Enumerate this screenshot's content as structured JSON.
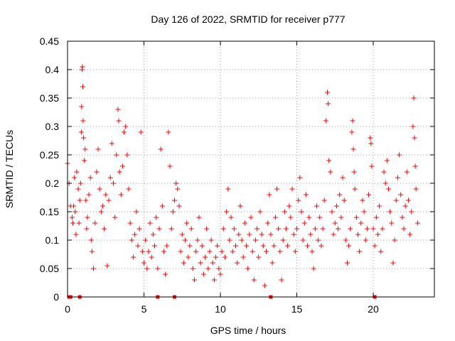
{
  "chart_data": {
    "type": "scatter",
    "title": "Day 126 of 2022, SRMTID for receiver p777",
    "xlabel": "GPS time / hours",
    "ylabel": "SRMTID / TECUs",
    "xlim": [
      0,
      24
    ],
    "ylim": [
      0,
      0.45
    ],
    "xticks": [
      0,
      5,
      10,
      15,
      20
    ],
    "xtick_labels": [
      "0",
      "5",
      "10",
      "15",
      "20"
    ],
    "yticks": [
      0,
      0.05,
      0.1,
      0.15,
      0.2,
      0.25,
      0.3,
      0.35,
      0.4,
      0.45
    ],
    "ytick_labels": [
      "0",
      "0.05",
      "0.1",
      "0.15",
      "0.2",
      "0.25",
      "0.3",
      "0.35",
      "0.4",
      "0.45"
    ],
    "grid": true,
    "marker": "+",
    "color": "#ff0000",
    "series": [
      {
        "name": "SRMTID",
        "points": [
          [
            0.0,
            0.235
          ],
          [
            0.1,
            0.2
          ],
          [
            0.2,
            0.16
          ],
          [
            0.3,
            0.14
          ],
          [
            0.35,
            0.13
          ],
          [
            0.4,
            0.16
          ],
          [
            0.45,
            0.21
          ],
          [
            0.5,
            0.15
          ],
          [
            0.55,
            0.11
          ],
          [
            0.6,
            0.22
          ],
          [
            0.7,
            0.19
          ],
          [
            0.75,
            0.13
          ],
          [
            0.8,
            0.17
          ],
          [
            0.85,
            0.2
          ],
          [
            0.9,
            0.29
          ],
          [
            0.92,
            0.335
          ],
          [
            0.95,
            0.4
          ],
          [
            0.97,
            0.405
          ],
          [
            1.0,
            0.37
          ],
          [
            1.02,
            0.31
          ],
          [
            1.05,
            0.28
          ],
          [
            1.1,
            0.24
          ],
          [
            1.15,
            0.26
          ],
          [
            1.2,
            0.17
          ],
          [
            1.25,
            0.12
          ],
          [
            1.3,
            0.14
          ],
          [
            1.4,
            0.18
          ],
          [
            1.5,
            0.21
          ],
          [
            1.55,
            0.1
          ],
          [
            1.6,
            0.08
          ],
          [
            1.7,
            0.05
          ],
          [
            1.8,
            0.13
          ],
          [
            1.9,
            0.22
          ],
          [
            2.0,
            0.26
          ],
          [
            2.1,
            0.19
          ],
          [
            2.2,
            0.15
          ],
          [
            2.3,
            0.16
          ],
          [
            2.4,
            0.12
          ],
          [
            2.5,
            0.18
          ],
          [
            2.6,
            0.055
          ],
          [
            2.7,
            0.17
          ],
          [
            2.8,
            0.21
          ],
          [
            2.9,
            0.27
          ],
          [
            3.0,
            0.2
          ],
          [
            3.1,
            0.14
          ],
          [
            3.2,
            0.25
          ],
          [
            3.3,
            0.33
          ],
          [
            3.35,
            0.31
          ],
          [
            3.4,
            0.22
          ],
          [
            3.5,
            0.18
          ],
          [
            3.6,
            0.23
          ],
          [
            3.7,
            0.29
          ],
          [
            3.8,
            0.3
          ],
          [
            3.9,
            0.25
          ],
          [
            4.0,
            0.19
          ],
          [
            4.1,
            0.13
          ],
          [
            4.2,
            0.1
          ],
          [
            4.3,
            0.07
          ],
          [
            4.4,
            0.11
          ],
          [
            4.5,
            0.15
          ],
          [
            4.6,
            0.09
          ],
          [
            4.7,
            0.12
          ],
          [
            4.8,
            0.29
          ],
          [
            4.9,
            0.08
          ],
          [
            5.0,
            0.06
          ],
          [
            5.1,
            0.1
          ],
          [
            5.2,
            0.05
          ],
          [
            5.3,
            0.08
          ],
          [
            5.4,
            0.13
          ],
          [
            5.5,
            0.07
          ],
          [
            5.6,
            0.11
          ],
          [
            5.7,
            0.09
          ],
          [
            5.8,
            0.14
          ],
          [
            5.9,
            0.05
          ],
          [
            6.0,
            0.12
          ],
          [
            6.1,
            0.26
          ],
          [
            6.2,
            0.16
          ],
          [
            6.3,
            0.08
          ],
          [
            6.4,
            0.04
          ],
          [
            6.5,
            0.09
          ],
          [
            6.6,
            0.29
          ],
          [
            6.7,
            0.23
          ],
          [
            6.8,
            0.12
          ],
          [
            6.9,
            0.15
          ],
          [
            7.0,
            0.17
          ],
          [
            7.1,
            0.2
          ],
          [
            7.2,
            0.19
          ],
          [
            7.3,
            0.16
          ],
          [
            7.4,
            0.08
          ],
          [
            7.5,
            0.11
          ],
          [
            7.6,
            0.06
          ],
          [
            7.7,
            0.1
          ],
          [
            7.8,
            0.13
          ],
          [
            7.9,
            0.07
          ],
          [
            8.0,
            0.09
          ],
          [
            8.1,
            0.12
          ],
          [
            8.2,
            0.05
          ],
          [
            8.3,
            0.03
          ],
          [
            8.4,
            0.08
          ],
          [
            8.5,
            0.1
          ],
          [
            8.6,
            0.14
          ],
          [
            8.7,
            0.06
          ],
          [
            8.8,
            0.09
          ],
          [
            8.9,
            0.04
          ],
          [
            9.0,
            0.07
          ],
          [
            9.1,
            0.12
          ],
          [
            9.2,
            0.05
          ],
          [
            9.3,
            0.08
          ],
          [
            9.4,
            0.1
          ],
          [
            9.5,
            0.06
          ],
          [
            9.6,
            0.03
          ],
          [
            9.7,
            0.07
          ],
          [
            9.8,
            0.09
          ],
          [
            9.9,
            0.05
          ],
          [
            10.0,
            0.04
          ],
          [
            10.1,
            0.08
          ],
          [
            10.2,
            0.12
          ],
          [
            10.3,
            0.07
          ],
          [
            10.4,
            0.15
          ],
          [
            10.5,
            0.19
          ],
          [
            10.6,
            0.1
          ],
          [
            10.7,
            0.14
          ],
          [
            10.8,
            0.08
          ],
          [
            10.9,
            0.12
          ],
          [
            11.0,
            0.09
          ],
          [
            11.1,
            0.06
          ],
          [
            11.2,
            0.11
          ],
          [
            11.3,
            0.16
          ],
          [
            11.4,
            0.1
          ],
          [
            11.5,
            0.07
          ],
          [
            11.6,
            0.13
          ],
          [
            11.7,
            0.09
          ],
          [
            11.8,
            0.05
          ],
          [
            11.9,
            0.11
          ],
          [
            12.0,
            0.14
          ],
          [
            12.1,
            0.08
          ],
          [
            12.2,
            0.03
          ],
          [
            12.3,
            0.1
          ],
          [
            12.4,
            0.12
          ],
          [
            12.5,
            0.07
          ],
          [
            12.6,
            0.15
          ],
          [
            12.7,
            0.11
          ],
          [
            12.8,
            0.09
          ],
          [
            12.9,
            0.02
          ],
          [
            13.0,
            0.08
          ],
          [
            13.1,
            0.13
          ],
          [
            13.2,
            0.18
          ],
          [
            13.3,
            0.11
          ],
          [
            13.4,
            0.06
          ],
          [
            13.5,
            0.09
          ],
          [
            13.6,
            0.14
          ],
          [
            13.7,
            0.19
          ],
          [
            13.8,
            0.12
          ],
          [
            13.9,
            0.08
          ],
          [
            14.0,
            0.03
          ],
          [
            14.1,
            0.1
          ],
          [
            14.2,
            0.15
          ],
          [
            14.3,
            0.12
          ],
          [
            14.4,
            0.09
          ],
          [
            14.5,
            0.16
          ],
          [
            14.6,
            0.14
          ],
          [
            14.7,
            0.19
          ],
          [
            14.8,
            0.11
          ],
          [
            14.9,
            0.08
          ],
          [
            15.0,
            0.12
          ],
          [
            15.1,
            0.17
          ],
          [
            15.2,
            0.21
          ],
          [
            15.3,
            0.15
          ],
          [
            15.4,
            0.1
          ],
          [
            15.5,
            0.13
          ],
          [
            15.6,
            0.18
          ],
          [
            15.7,
            0.09
          ],
          [
            15.8,
            0.14
          ],
          [
            15.9,
            0.11
          ],
          [
            16.0,
            0.08
          ],
          [
            16.1,
            0.05
          ],
          [
            16.2,
            0.12
          ],
          [
            16.3,
            0.16
          ],
          [
            16.4,
            0.1
          ],
          [
            16.5,
            0.14
          ],
          [
            16.6,
            0.09
          ],
          [
            16.7,
            0.12
          ],
          [
            16.8,
            0.17
          ],
          [
            16.9,
            0.31
          ],
          [
            17.0,
            0.36
          ],
          [
            17.05,
            0.34
          ],
          [
            17.1,
            0.24
          ],
          [
            17.2,
            0.22
          ],
          [
            17.3,
            0.15
          ],
          [
            17.4,
            0.11
          ],
          [
            17.5,
            0.13
          ],
          [
            17.6,
            0.16
          ],
          [
            17.7,
            0.12
          ],
          [
            17.8,
            0.18
          ],
          [
            17.9,
            0.14
          ],
          [
            18.0,
            0.21
          ],
          [
            18.1,
            0.17
          ],
          [
            18.2,
            0.1
          ],
          [
            18.3,
            0.06
          ],
          [
            18.4,
            0.09
          ],
          [
            18.5,
            0.12
          ],
          [
            18.6,
            0.29
          ],
          [
            18.65,
            0.31
          ],
          [
            18.7,
            0.26
          ],
          [
            18.75,
            0.22
          ],
          [
            18.8,
            0.19
          ],
          [
            18.9,
            0.14
          ],
          [
            19.0,
            0.11
          ],
          [
            19.1,
            0.08
          ],
          [
            19.2,
            0.13
          ],
          [
            19.3,
            0.17
          ],
          [
            19.4,
            0.15
          ],
          [
            19.5,
            0.1
          ],
          [
            19.6,
            0.12
          ],
          [
            19.7,
            0.18
          ],
          [
            19.8,
            0.28
          ],
          [
            19.85,
            0.27
          ],
          [
            19.9,
            0.23
          ],
          [
            20.0,
            0.12
          ],
          [
            20.1,
            0.09
          ],
          [
            20.2,
            0.14
          ],
          [
            20.3,
            0.11
          ],
          [
            20.4,
            0.16
          ],
          [
            20.5,
            0.08
          ],
          [
            20.6,
            0.12
          ],
          [
            20.7,
            0.22
          ],
          [
            20.8,
            0.2
          ],
          [
            20.9,
            0.24
          ],
          [
            21.0,
            0.19
          ],
          [
            21.1,
            0.15
          ],
          [
            21.2,
            0.13
          ],
          [
            21.3,
            0.06
          ],
          [
            21.4,
            0.1
          ],
          [
            21.5,
            0.17
          ],
          [
            21.6,
            0.21
          ],
          [
            21.7,
            0.25
          ],
          [
            21.8,
            0.18
          ],
          [
            21.9,
            0.14
          ],
          [
            22.0,
            0.12
          ],
          [
            22.1,
            0.16
          ],
          [
            22.2,
            0.22
          ],
          [
            22.3,
            0.17
          ],
          [
            22.4,
            0.11
          ],
          [
            22.5,
            0.15
          ],
          [
            22.6,
            0.3
          ],
          [
            22.65,
            0.35
          ],
          [
            22.7,
            0.28
          ],
          [
            22.75,
            0.23
          ],
          [
            22.8,
            0.19
          ],
          [
            22.9,
            0.13
          ]
        ]
      }
    ],
    "zero_markers_x": [
      0.1,
      0.2,
      0.8,
      5.9,
      7.0,
      13.3,
      20.1
    ]
  }
}
